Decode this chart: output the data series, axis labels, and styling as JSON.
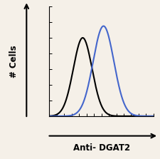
{
  "title": "",
  "xlabel": "Anti- DGAT2",
  "ylabel": "# Cells",
  "background_color": "#f5f0e8",
  "plot_bg_color": "#f5f0e8",
  "black_curve": {
    "mu": 0.32,
    "sigma": 0.09,
    "color": "#000000",
    "linewidth": 1.5
  },
  "blue_curve": {
    "mu": 0.52,
    "sigma": 0.1,
    "color": "#4466cc",
    "linewidth": 1.5
  },
  "xlim": [
    0,
    1
  ],
  "ylim": [
    0,
    1
  ],
  "figsize": [
    2.25,
    2.23
  ],
  "dpi": 100
}
